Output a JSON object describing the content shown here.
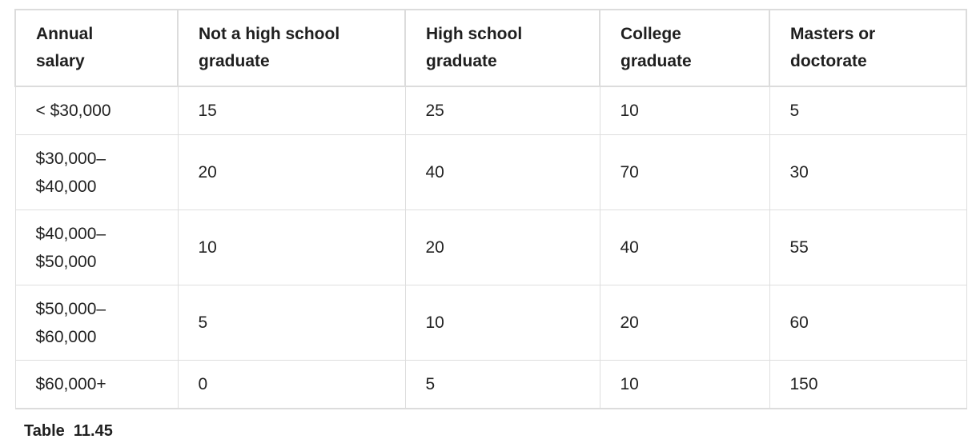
{
  "table": {
    "headers": [
      [
        "Annual",
        "salary"
      ],
      [
        "Not a high school",
        "graduate"
      ],
      [
        "High school",
        "graduate"
      ],
      [
        "College",
        "graduate"
      ],
      [
        "Masters or",
        "doctorate"
      ]
    ],
    "rows": [
      {
        "salary": [
          "< $30,000"
        ],
        "values": [
          "15",
          "25",
          "10",
          "5"
        ]
      },
      {
        "salary": [
          "$30,000–",
          "$40,000"
        ],
        "values": [
          "20",
          "40",
          "70",
          "30"
        ]
      },
      {
        "salary": [
          "$40,000–",
          "$50,000"
        ],
        "values": [
          "10",
          "20",
          "40",
          "55"
        ]
      },
      {
        "salary": [
          "$50,000–",
          "$60,000"
        ],
        "values": [
          "5",
          "10",
          "20",
          "60"
        ]
      },
      {
        "salary": [
          "$60,000+"
        ],
        "values": [
          "0",
          "5",
          "10",
          "150"
        ]
      }
    ]
  },
  "caption": "Table  11.45"
}
